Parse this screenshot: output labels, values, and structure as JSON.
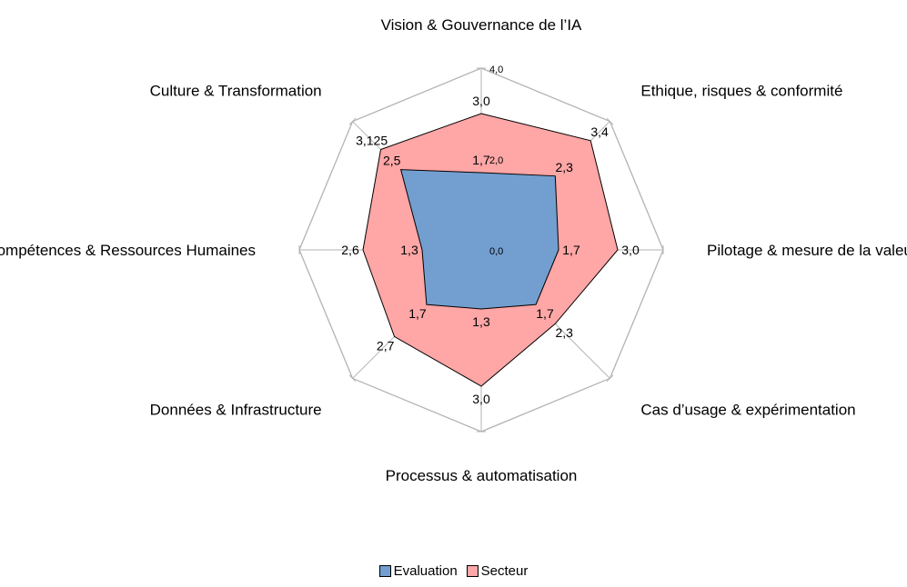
{
  "chart_data": {
    "type": "radar",
    "categories": [
      "Vision & Gouvernance de l’IA",
      "Ethique, risques & conformité",
      "Pilotage & mesure de la valeur",
      "Cas d’usage & expérimentation",
      "Processus & automatisation",
      "Données & Infrastructure",
      "Compétences & Ressources Humaines",
      "Culture & Transformation"
    ],
    "rmax": 4,
    "scale_labels": {
      "max": "4,0",
      "mid": "2,0",
      "min": "0,0"
    },
    "series": [
      {
        "name": "Secteur",
        "color": "#ffa6a6",
        "values": [
          3.0,
          3.4,
          3.0,
          2.3,
          3.0,
          2.7,
          2.6,
          3.125
        ],
        "labels": [
          "3,0",
          "3,4",
          "3,0",
          "2,3",
          "3,0",
          "2,7",
          "2,6",
          "3,125"
        ]
      },
      {
        "name": "Evaluation",
        "color": "#729fcf",
        "values": [
          1.7,
          2.3,
          1.7,
          1.7,
          1.3,
          1.7,
          1.3,
          2.5
        ],
        "labels": [
          "1,7",
          "2,3",
          "1,7",
          "1,7",
          "1,3",
          "1,7",
          "1,3",
          "2,5"
        ]
      }
    ],
    "grid_color": "#b3b3b3",
    "legend": "bottom"
  }
}
